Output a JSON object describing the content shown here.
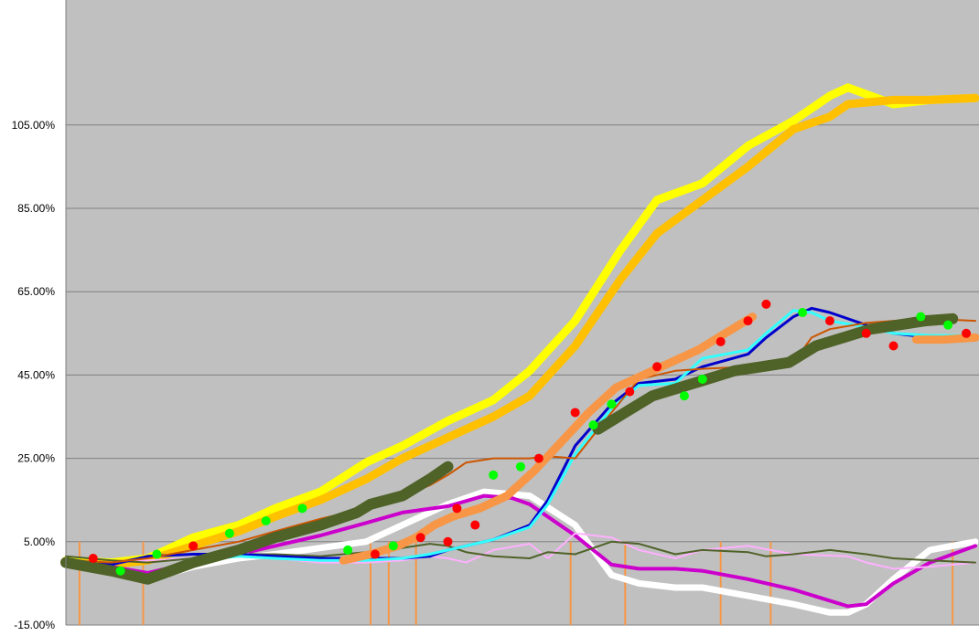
{
  "chart_data": {
    "type": "line",
    "title": "",
    "xlabel": "",
    "ylabel": "",
    "ylim": [
      -15,
      135
    ],
    "xlim": [
      0,
      100
    ],
    "grid": true,
    "legend": "none",
    "plot_background": "#c0c0c0",
    "gridline_color": "#808080",
    "ytick_values": [
      -15,
      5,
      25,
      45,
      65,
      85,
      105
    ],
    "ytick_labels": [
      "-15.00%",
      "5.00%",
      "25.00%",
      "45.00%",
      "65.00%",
      "85.00%",
      "105.00%"
    ],
    "series": [
      {
        "color": "#ffff00",
        "width": 9,
        "x": [
          0,
          5,
          9,
          14,
          19,
          23,
          28,
          33,
          37,
          42,
          47,
          51,
          56,
          61,
          65,
          70,
          75,
          80,
          84,
          86,
          91,
          95,
          100
        ],
        "y": [
          0.5,
          0.0,
          1.0,
          6.0,
          9.0,
          13.0,
          17.0,
          24.0,
          28.0,
          34.0,
          39.0,
          46.0,
          58.0,
          75.0,
          87.0,
          91.0,
          100.0,
          106.0,
          112.0,
          114.0,
          110.0,
          111.0,
          111.5
        ]
      },
      {
        "color": "#ffc000",
        "width": 9,
        "x": [
          0,
          5,
          9,
          14,
          19,
          23,
          28,
          33,
          37,
          42,
          47,
          51,
          56,
          61,
          65,
          70,
          75,
          80,
          84,
          86,
          91,
          95,
          100
        ],
        "y": [
          0.0,
          -0.5,
          0.5,
          4.0,
          7.5,
          11.0,
          15.0,
          20.0,
          25.0,
          30.0,
          35.0,
          40.0,
          52.0,
          68.0,
          79.0,
          87.0,
          95.0,
          104.0,
          107.0,
          110.0,
          111.0,
          111.0,
          111.5
        ]
      },
      {
        "color": "#ffffff",
        "width": 7,
        "x": [
          0,
          5,
          9,
          14,
          19,
          23,
          28,
          33,
          37,
          42,
          46,
          51,
          56,
          60,
          63,
          67,
          70,
          75,
          80,
          84,
          86,
          88,
          91,
          95,
          100
        ],
        "y": [
          0.0,
          -2.0,
          -4.0,
          -1.0,
          1.0,
          2.0,
          3.5,
          5.0,
          9.0,
          14.0,
          17.0,
          16.0,
          9.0,
          -3.0,
          -5.0,
          -6.0,
          -6.0,
          -8.0,
          -10.0,
          -12.0,
          -12.0,
          -10.0,
          -4.0,
          3.0,
          5.0
        ]
      },
      {
        "color": "#cc00cc",
        "width": 4,
        "x": [
          0,
          5,
          9,
          14,
          19,
          23,
          28,
          33,
          37,
          42,
          46,
          49,
          51,
          56,
          60,
          63,
          67,
          70,
          75,
          80,
          86,
          88,
          91,
          95,
          100
        ],
        "y": [
          0.5,
          -1.0,
          -2.5,
          0.0,
          2.0,
          4.0,
          6.5,
          9.5,
          12.0,
          13.5,
          16.0,
          15.5,
          14.0,
          6.5,
          -0.5,
          -1.5,
          -1.5,
          -2.0,
          -4.0,
          -6.5,
          -10.5,
          -10.0,
          -5.0,
          0.0,
          4.0
        ]
      },
      {
        "color": "#ffb0ff",
        "width": 2,
        "x": [
          0,
          5,
          9,
          14,
          19,
          23,
          28,
          33,
          37,
          40,
          42,
          44,
          47,
          51,
          53,
          56,
          60,
          63,
          67,
          70,
          75,
          80,
          86,
          88,
          91,
          95,
          100
        ],
        "y": [
          0.0,
          0.0,
          0.5,
          1.0,
          2.5,
          1.0,
          0.0,
          0.0,
          0.5,
          1.5,
          1.0,
          0.0,
          3.0,
          4.5,
          1.0,
          7.0,
          6.0,
          3.0,
          1.0,
          3.0,
          4.0,
          2.0,
          1.5,
          0.0,
          -1.5,
          -1.0,
          0.0
        ]
      },
      {
        "color": "#4f6228",
        "width": 2,
        "x": [
          0,
          5,
          9,
          14,
          19,
          23,
          28,
          33,
          37,
          40,
          42,
          44,
          47,
          51,
          53,
          56,
          60,
          63,
          67,
          70,
          75,
          77,
          80,
          82,
          84,
          88,
          91,
          95,
          100
        ],
        "y": [
          1.5,
          0.5,
          0.0,
          1.0,
          2.0,
          2.0,
          1.5,
          2.5,
          3.5,
          4.5,
          4.0,
          2.5,
          1.5,
          1.0,
          2.5,
          2.0,
          5.0,
          4.5,
          2.0,
          3.0,
          2.5,
          1.5,
          2.0,
          2.5,
          3.0,
          2.0,
          1.0,
          0.5,
          0.0
        ]
      },
      {
        "color": "#0000cc",
        "width": 3,
        "x": [
          0,
          5,
          9,
          14,
          19,
          23,
          28,
          33,
          37,
          40,
          42,
          44,
          47,
          51,
          53,
          56,
          60,
          63,
          67,
          70,
          75,
          77,
          80,
          82,
          84,
          88,
          91,
          95,
          100
        ],
        "y": [
          0.0,
          -0.5,
          1.5,
          2.0,
          2.0,
          1.5,
          1.0,
          1.0,
          1.0,
          1.5,
          3.0,
          4.0,
          5.5,
          9.0,
          15.0,
          28.0,
          38.0,
          43.0,
          44.0,
          47.0,
          50.0,
          54.0,
          59.0,
          61.0,
          60.0,
          57.0,
          55.0,
          54.0,
          54.0
        ]
      },
      {
        "color": "#33ffff",
        "width": 3,
        "x": [
          0,
          5,
          9,
          14,
          19,
          23,
          28,
          33,
          37,
          40,
          42,
          44,
          47,
          51,
          53,
          56,
          60,
          63,
          67,
          70,
          75,
          77,
          80,
          82,
          84,
          88,
          91,
          95,
          100
        ],
        "y": [
          0.0,
          -1.0,
          -3.0,
          0.5,
          1.5,
          1.0,
          0.5,
          0.5,
          1.0,
          2.0,
          3.0,
          4.0,
          5.5,
          8.5,
          14.0,
          26.0,
          37.0,
          42.5,
          43.0,
          49.0,
          51.0,
          55.0,
          60.5,
          60.0,
          58.0,
          56.5,
          55.0,
          54.5,
          54.5
        ]
      },
      {
        "color": "#cc5500",
        "width": 2,
        "x": [
          0,
          5,
          9,
          14,
          19,
          23,
          28,
          33,
          37,
          40,
          42,
          44,
          47,
          51,
          53,
          56,
          60,
          63,
          67,
          70,
          75,
          77,
          80,
          82,
          84,
          88,
          91,
          95,
          100
        ],
        "y": [
          0.5,
          0.0,
          1.0,
          3.0,
          5.0,
          7.5,
          10.5,
          13.0,
          16.0,
          18.5,
          21.0,
          24.0,
          25.0,
          25.0,
          25.5,
          25.0,
          36.0,
          44.0,
          46.0,
          46.5,
          47.0,
          47.0,
          48.0,
          54.0,
          56.0,
          57.5,
          58.0,
          58.5,
          58.0
        ]
      },
      {
        "color": "#f79646",
        "width": 9,
        "x": [
          30.5,
          33.5,
          36.5,
          38.5,
          40.5,
          42.5,
          45.5,
          48.5,
          51.5,
          54.5,
          57.5,
          60.5,
          63.5,
          66.5,
          69.5,
          72.5,
          75.5
        ],
        "y": [
          0.5,
          2.0,
          4.0,
          6.0,
          9.0,
          11.0,
          13.0,
          16.0,
          22.0,
          29.0,
          36.0,
          42.0,
          45.0,
          48.0,
          51.0,
          55.0,
          59.0
        ]
      },
      {
        "color": "#f79646",
        "width": 9,
        "x": [
          93.5,
          96.5,
          100
        ],
        "y": [
          53.5,
          53.5,
          54.0
        ]
      },
      {
        "color": "#4f6228",
        "width": 12,
        "x": [
          0,
          5,
          9,
          14,
          19,
          23,
          28,
          32,
          33.5,
          37,
          40,
          42
        ],
        "y": [
          0.0,
          -2.0,
          -4.0,
          0.0,
          3.0,
          6.0,
          9.0,
          12.0,
          14.0,
          16.0,
          20.0,
          23.0
        ]
      },
      {
        "color": "#4f6228",
        "width": 12,
        "x": [
          58.5,
          61.5,
          64.5,
          67.5,
          70.5,
          73.5,
          76.5,
          79.5,
          82.5,
          85.5,
          88.5,
          91.5,
          94.5,
          97.5
        ],
        "y": [
          32.0,
          36.0,
          40.0,
          42.0,
          44.0,
          46.0,
          47.0,
          48.0,
          52.0,
          54.0,
          56.0,
          57.0,
          58.0,
          58.5
        ]
      }
    ],
    "vertical_lines": {
      "color": "#f79646",
      "x": [
        1.5,
        8.5,
        33.5,
        35.5,
        38.5,
        55.5,
        61.5,
        72,
        77.5,
        97.5
      ]
    },
    "markers": [
      {
        "x": 31,
        "y": 3,
        "color": "#00ff00"
      },
      {
        "x": 34,
        "y": 2,
        "color": "#ff0000"
      },
      {
        "x": 36,
        "y": 4,
        "color": "#00ff00"
      },
      {
        "x": 39,
        "y": 6,
        "color": "#ff0000"
      },
      {
        "x": 42,
        "y": 5,
        "color": "#ff0000"
      },
      {
        "x": 43,
        "y": 13,
        "color": "#ff0000"
      },
      {
        "x": 45,
        "y": 9,
        "color": "#ff0000"
      },
      {
        "x": 47,
        "y": 21,
        "color": "#00ff00"
      },
      {
        "x": 50,
        "y": 23,
        "color": "#00ff00"
      },
      {
        "x": 52,
        "y": 25,
        "color": "#ff0000"
      },
      {
        "x": 56,
        "y": 36,
        "color": "#ff0000"
      },
      {
        "x": 58,
        "y": 33,
        "color": "#00ff00"
      },
      {
        "x": 60,
        "y": 38,
        "color": "#00ff00"
      },
      {
        "x": 62,
        "y": 41,
        "color": "#ff0000"
      },
      {
        "x": 65,
        "y": 47,
        "color": "#ff0000"
      },
      {
        "x": 68,
        "y": 40,
        "color": "#00ff00"
      },
      {
        "x": 70,
        "y": 44,
        "color": "#00ff00"
      },
      {
        "x": 72,
        "y": 53,
        "color": "#ff0000"
      },
      {
        "x": 75,
        "y": 58,
        "color": "#ff0000"
      },
      {
        "x": 77,
        "y": 62,
        "color": "#ff0000"
      },
      {
        "x": 81,
        "y": 60,
        "color": "#00ff00"
      },
      {
        "x": 84,
        "y": 58,
        "color": "#ff0000"
      },
      {
        "x": 88,
        "y": 55,
        "color": "#ff0000"
      },
      {
        "x": 91,
        "y": 52,
        "color": "#ff0000"
      },
      {
        "x": 94,
        "y": 59,
        "color": "#00ff00"
      },
      {
        "x": 97,
        "y": 57,
        "color": "#00ff00"
      },
      {
        "x": 99,
        "y": 55,
        "color": "#ff0000"
      },
      {
        "x": 3,
        "y": 1,
        "color": "#ff0000"
      },
      {
        "x": 6,
        "y": -2,
        "color": "#00ff00"
      },
      {
        "x": 10,
        "y": 2,
        "color": "#00ff00"
      },
      {
        "x": 14,
        "y": 4,
        "color": "#ff0000"
      },
      {
        "x": 18,
        "y": 7,
        "color": "#00ff00"
      },
      {
        "x": 22,
        "y": 10,
        "color": "#00ff00"
      },
      {
        "x": 26,
        "y": 13,
        "color": "#00ff00"
      }
    ]
  }
}
